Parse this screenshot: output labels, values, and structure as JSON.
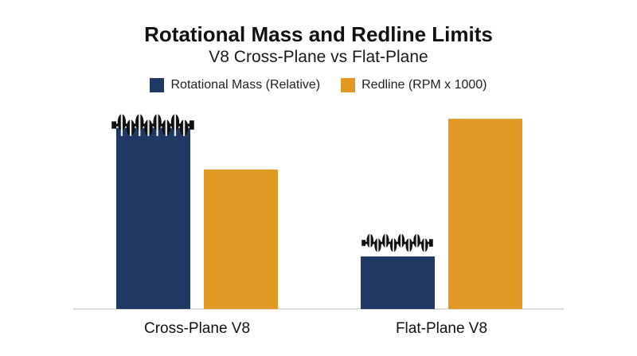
{
  "chart_data": {
    "type": "bar",
    "title": "Rotational Mass and Redline Limits",
    "subtitle": "V8 Cross-Plane vs Flat-Plane",
    "categories": [
      "Cross-Plane V8",
      "Flat-Plane V8"
    ],
    "series": [
      {
        "name": "Rotational Mass (Relative)",
        "values": [
          100,
          29
        ],
        "color": "#1f3864"
      },
      {
        "name": "Redline (RPM x 1000)",
        "values": [
          77,
          105
        ],
        "color": "#e09a23"
      }
    ],
    "ylim": [
      0,
      120
    ],
    "grid": false,
    "legend": "top-center",
    "annotations": [
      "crankshaft-icon-heavy",
      "crankshaft-icon-light"
    ]
  }
}
